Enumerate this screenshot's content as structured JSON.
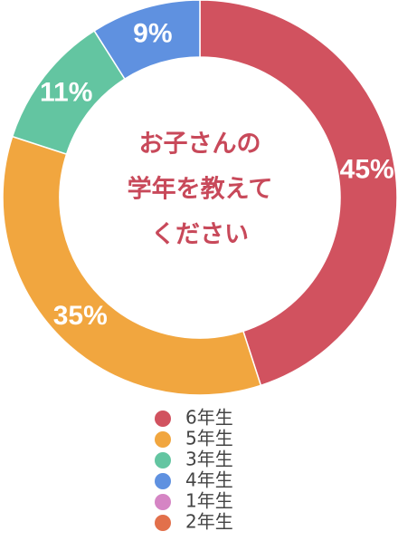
{
  "chart_data": {
    "type": "donut",
    "title": [
      "お子さんの",
      "学年を教えて",
      "ください"
    ],
    "series": [
      {
        "name": "6年生",
        "color": "#d1525f",
        "values": [
          45
        ],
        "value_labels": [
          "45%"
        ]
      },
      {
        "name": "5年生",
        "color": "#f1a63f",
        "values": [
          35
        ],
        "value_labels": [
          "35%"
        ]
      },
      {
        "name": "3年生",
        "color": "#63c5a1",
        "values": [
          11
        ],
        "value_labels": [
          "11%"
        ]
      },
      {
        "name": "4年生",
        "color": "#5f91e0",
        "values": [
          9
        ],
        "value_labels": [
          "9%"
        ]
      },
      {
        "name": "1年生",
        "color": "#d585c4",
        "values": [
          0
        ],
        "value_labels": [
          null
        ]
      },
      {
        "name": "2年生",
        "color": "#e2704b",
        "values": [
          0
        ],
        "value_labels": [
          null
        ]
      }
    ]
  }
}
